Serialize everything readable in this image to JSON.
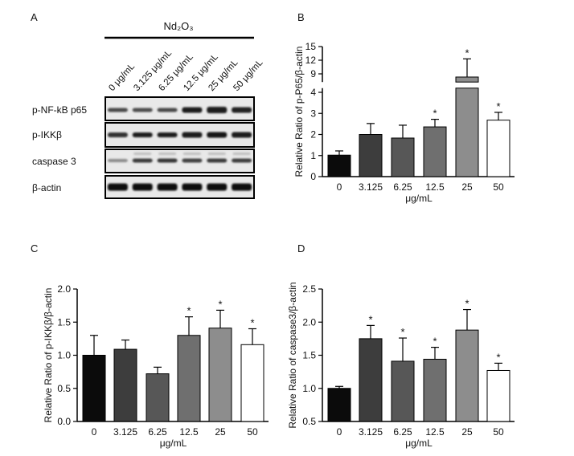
{
  "blot": {
    "panel": "A",
    "treatment": "Nd₂O₃",
    "lanes": [
      "0 μg/mL",
      "3.125 μg/mL",
      "6.25 μg/mL",
      "12.5 μg/mL",
      "25 μg/mL",
      "50 μg/mL"
    ],
    "rows": [
      "p-NF-kB p65",
      "p-IKKβ",
      "caspase 3",
      "β-actin"
    ]
  },
  "chart_data": [
    {
      "panel": "B",
      "type": "bar",
      "categories": [
        "0",
        "3.125",
        "6.25",
        "12.5",
        "25",
        "50"
      ],
      "values": [
        1.02,
        2.0,
        1.83,
        2.36,
        8.3,
        2.68
      ],
      "error": [
        0.2,
        0.52,
        0.61,
        0.36,
        4.0,
        0.37
      ],
      "significance": [
        "",
        "",
        "",
        "*",
        "*",
        "*"
      ],
      "xlabel": "μg/mL",
      "ylabel": "Relative Ratio of p-P65/β-actin",
      "ylim": [
        0,
        15
      ],
      "y_break": [
        4.2,
        7.2
      ],
      "yticks": [
        "0",
        "1",
        "2",
        "3",
        "4",
        "9",
        "12",
        "15"
      ],
      "colors": [
        "#0b0b0b",
        "#3d3d3d",
        "#575757",
        "#6f6f6f",
        "#8d8d8d",
        "#ffffff"
      ]
    },
    {
      "panel": "C",
      "type": "bar",
      "categories": [
        "0",
        "3.125",
        "6.25",
        "12.5",
        "25",
        "50"
      ],
      "values": [
        1.0,
        1.09,
        0.72,
        1.3,
        1.41,
        1.16
      ],
      "error": [
        0.3,
        0.14,
        0.1,
        0.28,
        0.27,
        0.24
      ],
      "significance": [
        "",
        "",
        "",
        "*",
        "*",
        "*"
      ],
      "xlabel": "μg/mL",
      "ylabel": "Relative Ratio of p-IKKβ/β-actin",
      "ylim": [
        0,
        2
      ],
      "yticks": [
        "0.0",
        "0.5",
        "1.0",
        "1.5",
        "2.0"
      ],
      "colors": [
        "#0b0b0b",
        "#3d3d3d",
        "#575757",
        "#6f6f6f",
        "#8d8d8d",
        "#ffffff"
      ]
    },
    {
      "panel": "D",
      "type": "bar",
      "categories": [
        "0",
        "3.125",
        "6.25",
        "12.5",
        "25",
        "50"
      ],
      "values": [
        1.0,
        1.75,
        1.41,
        1.44,
        1.88,
        1.27
      ],
      "error": [
        0.03,
        0.2,
        0.35,
        0.18,
        0.31,
        0.11
      ],
      "significance": [
        "",
        "*",
        "*",
        "*",
        "*",
        "*"
      ],
      "xlabel": "μg/mL",
      "ylabel": "Relative Ratio of caspase3/β-actin",
      "ylim": [
        0.5,
        2.5
      ],
      "yticks": [
        "0.5",
        "1.0",
        "1.5",
        "2.0",
        "2.5"
      ],
      "colors": [
        "#0b0b0b",
        "#3d3d3d",
        "#575757",
        "#6f6f6f",
        "#8d8d8d",
        "#ffffff"
      ]
    }
  ]
}
